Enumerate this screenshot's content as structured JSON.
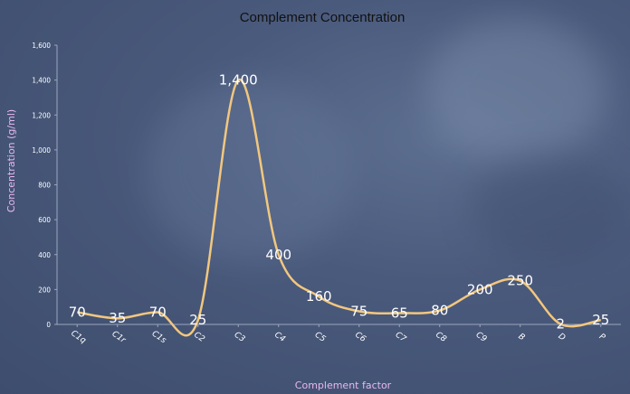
{
  "chart_data": {
    "type": "line",
    "title": "Complement Concentration",
    "xlabel": "Complement factor",
    "ylabel": "Concentration (g/ml)",
    "categories": [
      "C1q",
      "C1r",
      "C1s",
      "C2",
      "C3",
      "C4",
      "C5",
      "C6",
      "C7",
      "C8",
      "C9",
      "B",
      "D",
      "P"
    ],
    "values": [
      70,
      35,
      70,
      25,
      1400,
      400,
      160,
      75,
      65,
      80,
      200,
      250,
      2,
      25
    ],
    "data_labels": [
      "70",
      "35",
      "70",
      "25",
      "1,400",
      "400",
      "160",
      "75",
      "65",
      "80",
      "200",
      "250",
      "2",
      "25"
    ],
    "y_ticks": [
      "0",
      "200",
      "400",
      "600",
      "800",
      "1,000",
      "1,200",
      "1,400",
      "1,600"
    ],
    "ylim": [
      0,
      1600
    ],
    "smooth": true,
    "line_color": "#f2c77e",
    "grid": false,
    "legend": "none"
  }
}
